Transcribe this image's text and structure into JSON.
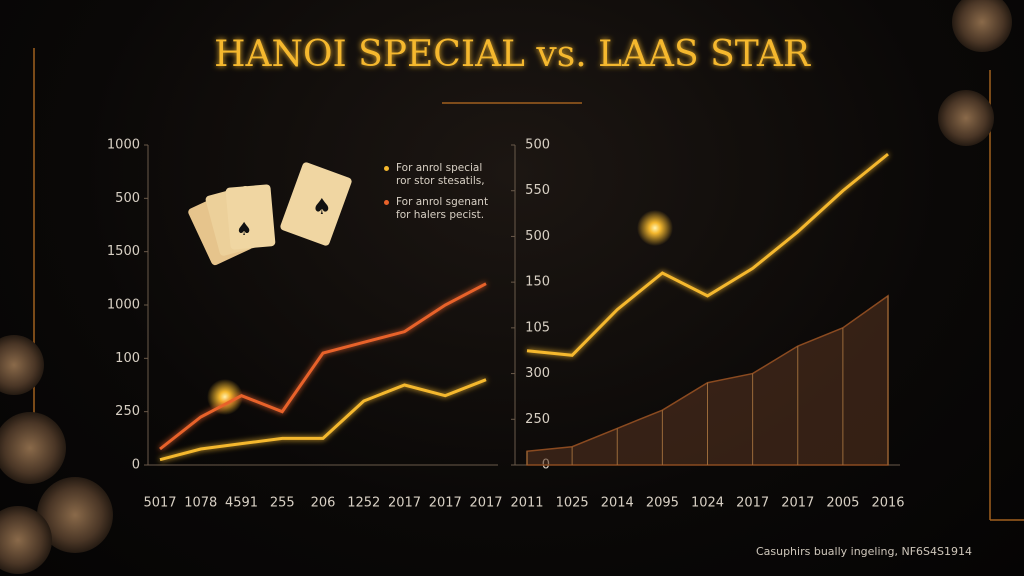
{
  "title": "HANOI SPECIAL vs. LAAS STAR",
  "footer": "Casuphirs bually ingeling, NF6S4S1914",
  "chart_data": [
    {
      "type": "line",
      "categories": [
        "5017",
        "1078",
        "4591",
        "255",
        "206",
        "1252",
        "2017",
        "2017",
        "2017"
      ],
      "ylim": [
        0,
        6
      ],
      "yticks": [
        {
          "value": 0,
          "label": "0"
        },
        {
          "value": 1,
          "label": "250"
        },
        {
          "value": 2,
          "label": "100"
        },
        {
          "value": 3,
          "label": "1000"
        },
        {
          "value": 4,
          "label": "1500"
        },
        {
          "value": 5,
          "label": "500"
        },
        {
          "value": 6,
          "label": "1000"
        }
      ],
      "legend": "upper right",
      "series": [
        {
          "name": "For anrol special\nror stor stesatils,",
          "color": "#f5b82e",
          "values": [
            0.1,
            0.3,
            0.4,
            0.5,
            0.5,
            1.2,
            1.5,
            1.3,
            1.6
          ]
        },
        {
          "name": "For anrol sgenant\nfor halers pecist.",
          "color": "#e8622a",
          "values": [
            0.3,
            0.9,
            1.3,
            1.0,
            2.1,
            2.3,
            2.5,
            3.0,
            3.4
          ]
        }
      ]
    },
    {
      "type": "line",
      "categories": [
        "2011",
        "1025",
        "2014",
        "2095",
        "1024",
        "2017",
        "2017",
        "2005",
        "2016"
      ],
      "ylim": [
        0,
        7
      ],
      "yticks": [
        {
          "value": 0,
          "label": "0"
        },
        {
          "value": 1,
          "label": "250"
        },
        {
          "value": 2,
          "label": "300"
        },
        {
          "value": 3,
          "label": "105"
        },
        {
          "value": 4,
          "label": "150"
        },
        {
          "value": 5,
          "label": "500"
        },
        {
          "value": 6,
          "label": "550"
        },
        {
          "value": 7,
          "label": "500"
        }
      ],
      "series": [
        {
          "color": "#f5b82e",
          "values": [
            2.5,
            2.4,
            3.4,
            4.2,
            3.7,
            4.3,
            5.1,
            6.0,
            6.8
          ]
        },
        {
          "color": "#5a3420",
          "area": true,
          "values": [
            0.3,
            0.4,
            0.8,
            1.2,
            1.8,
            2.0,
            2.6,
            3.0,
            3.7
          ]
        }
      ]
    }
  ]
}
